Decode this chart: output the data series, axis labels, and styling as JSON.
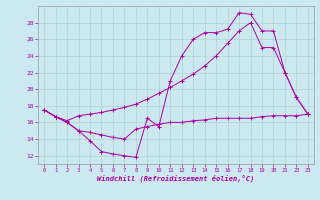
{
  "background_color": "#cce8f0",
  "grid_color": "#aacfcc",
  "line_color": "#aa00aa",
  "marker": "+",
  "xlabel": "Windchill (Refroidissement éolien,°C)",
  "xlim": [
    -0.5,
    23.5
  ],
  "ylim": [
    11,
    30
  ],
  "yticks": [
    12,
    14,
    16,
    18,
    20,
    22,
    24,
    26,
    28
  ],
  "xticks": [
    0,
    1,
    2,
    3,
    4,
    5,
    6,
    7,
    8,
    9,
    10,
    11,
    12,
    13,
    14,
    15,
    16,
    17,
    18,
    19,
    20,
    21,
    22,
    23
  ],
  "series": [
    {
      "x": [
        0,
        1,
        2,
        3,
        4,
        5,
        6,
        7,
        8,
        9,
        10,
        11,
        12,
        13,
        14,
        15,
        16,
        17,
        18,
        19,
        20,
        21,
        22,
        23
      ],
      "y": [
        17.5,
        16.7,
        16.0,
        15.0,
        13.8,
        12.5,
        12.2,
        12.0,
        11.8,
        16.5,
        15.5,
        21.0,
        24.0,
        26.0,
        26.8,
        26.8,
        27.2,
        29.2,
        29.0,
        27.0,
        27.0,
        22.0,
        19.0,
        17.0
      ]
    },
    {
      "x": [
        0,
        1,
        2,
        3,
        4,
        5,
        6,
        7,
        8,
        9,
        10,
        11,
        12,
        13,
        14,
        15,
        16,
        17,
        18,
        19,
        20,
        21,
        22,
        23
      ],
      "y": [
        17.5,
        16.7,
        16.2,
        16.8,
        17.0,
        17.2,
        17.5,
        17.8,
        18.2,
        18.8,
        19.5,
        20.2,
        21.0,
        21.8,
        22.8,
        24.0,
        25.5,
        27.0,
        28.0,
        25.0,
        25.0,
        22.0,
        19.0,
        17.0
      ]
    },
    {
      "x": [
        0,
        1,
        2,
        3,
        4,
        5,
        6,
        7,
        8,
        9,
        10,
        11,
        12,
        13,
        14,
        15,
        16,
        17,
        18,
        19,
        20,
        21,
        22,
        23
      ],
      "y": [
        17.5,
        16.7,
        16.0,
        15.0,
        14.8,
        14.5,
        14.2,
        14.0,
        15.2,
        15.5,
        15.8,
        16.0,
        16.0,
        16.2,
        16.3,
        16.5,
        16.5,
        16.5,
        16.5,
        16.7,
        16.8,
        16.8,
        16.8,
        17.0
      ]
    }
  ]
}
